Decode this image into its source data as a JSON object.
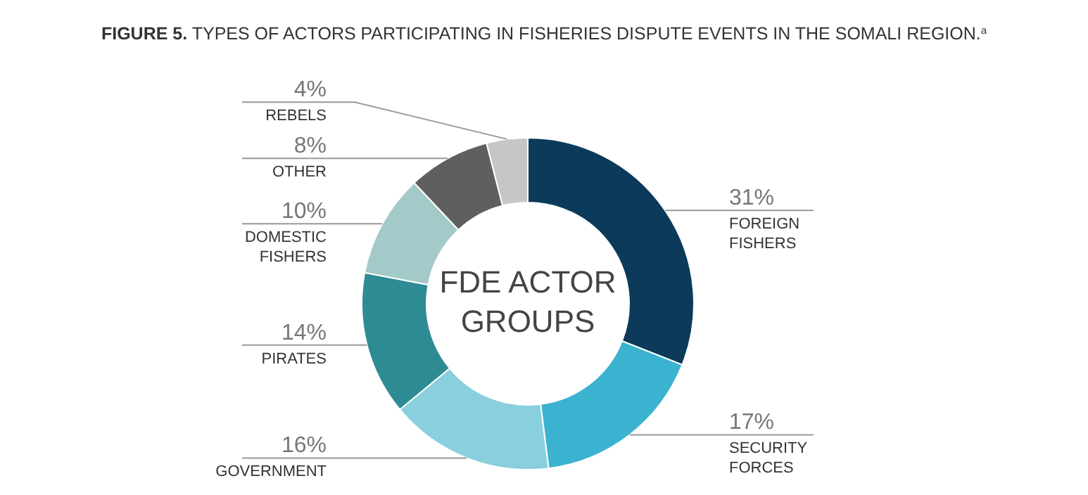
{
  "chart_data": {
    "type": "donut",
    "title": "FIGURE 5. TYPES OF ACTORS PARTICIPATING IN FISHERIES DISPUTE EVENTS IN THE SOMALI REGION.$^{a}$",
    "categories": [
      "FOREIGN FISHERS",
      "SECURITY FORCES",
      "GOVERNMENT",
      "PIRATES",
      "DOMESTIC FISHERS",
      "OTHER",
      "REBELS"
    ],
    "values": [
      31,
      17,
      16,
      14,
      10,
      8,
      4
    ],
    "colors": [
      "#0b3a5a",
      "#3bb3d0",
      "#89cfdd",
      "#2e8b94",
      "#a3c9c8",
      "#5f5f5f",
      "#c6c6c6"
    ],
    "value_labels": [
      "31%",
      "17%",
      "16%",
      "14%",
      "10%",
      "8%",
      "4%"
    ],
    "annotations": [
      "FDE ACTOR GROUPS"
    ],
    "legend": false
  }
}
